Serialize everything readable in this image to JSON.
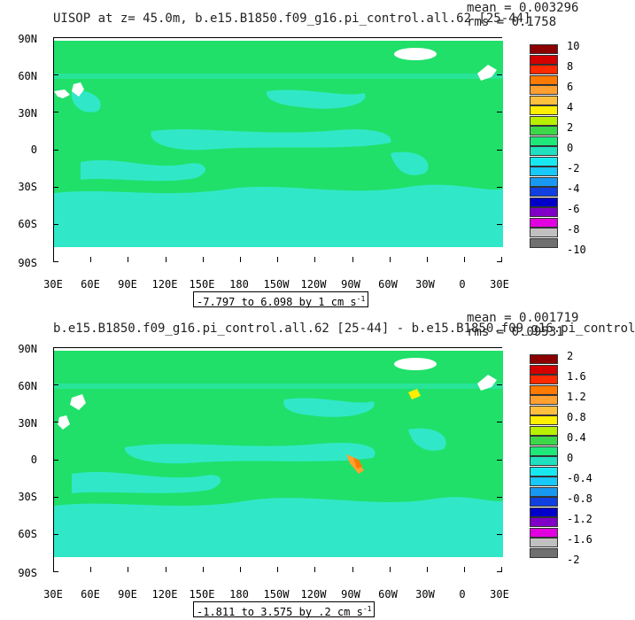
{
  "panels": [
    {
      "title": "UISOP at z=  45.0m, b.e15.B1850.f09_g16.pi_control.all.62 [25-44]",
      "mean_text": "mean = 0.003296",
      "rms_text": "rms = 0.1758",
      "range_text": "-7.797 to 6.098 by 1 cm s",
      "range_superscript": "-1",
      "colorbar_labels": [
        "10",
        "8",
        "6",
        "4",
        "2",
        "0",
        "-2",
        "-4",
        "-6",
        "-8",
        "-10"
      ]
    },
    {
      "title": "b.e15.B1850.f09_g16.pi_control.all.62 [25-44] - b.e15.B1850.f09_g16.pi_control",
      "mean_text": "mean = 0.001719",
      "rms_text": "rms = 0.09531",
      "range_text": "-1.811 to 3.575 by .2 cm s",
      "range_superscript": "-1",
      "colorbar_labels": [
        "2",
        "1.6",
        "1.2",
        "0.8",
        "0.4",
        "0",
        "-0.4",
        "-0.8",
        "-1.2",
        "-1.6",
        "-2"
      ]
    }
  ],
  "axes": {
    "lat_labels": [
      "90N",
      "60N",
      "30N",
      "0",
      "30S",
      "60S",
      "90S"
    ],
    "lon_labels": [
      "30E",
      "60E",
      "90E",
      "120E",
      "150E",
      "180",
      "150W",
      "120W",
      "90W",
      "60W",
      "30W",
      "0",
      "30E"
    ]
  },
  "colors": {
    "scale": [
      "#8b0000",
      "#d40000",
      "#ff2a00",
      "#ff7a00",
      "#ffa030",
      "#ffc040",
      "#ffee00",
      "#b8f000",
      "#3cd84a",
      "#1fe87a",
      "#20e0c0",
      "#18e8f0",
      "#18c8f8",
      "#1898f0",
      "#1040e0",
      "#0000c8",
      "#8000c8",
      "#e000e0",
      "#c0c0c0",
      "#707070"
    ],
    "background": "#20e06a",
    "ocean_light": "#30e8c8",
    "land": "#ffffff"
  },
  "chart_data": [
    {
      "type": "heatmap",
      "title": "UISOP at z=  45.0m, b.e15.B1850.f09_g16.pi_control.all.62 [25-44]",
      "stats": {
        "mean": 0.003296,
        "rms": 0.1758
      },
      "contour_range": {
        "min": -7.797,
        "max": 6.098,
        "interval": 1,
        "units": "cm s-1"
      },
      "colorbar_levels": [
        -10,
        -8,
        -6,
        -4,
        -2,
        0,
        2,
        4,
        6,
        8,
        10
      ],
      "x_range": [
        "30E",
        "30E"
      ],
      "y_range": [
        "90S",
        "90N"
      ]
    },
    {
      "type": "heatmap",
      "title": "b.e15.B1850.f09_g16.pi_control.all.62 [25-44] - b.e15.B1850.f09_g16.pi_control",
      "stats": {
        "mean": 0.001719,
        "rms": 0.09531
      },
      "contour_range": {
        "min": -1.811,
        "max": 3.575,
        "interval": 0.2,
        "units": "cm s-1"
      },
      "colorbar_levels": [
        -2,
        -1.6,
        -1.2,
        -0.8,
        -0.4,
        0,
        0.4,
        0.8,
        1.2,
        1.6,
        2
      ],
      "x_range": [
        "30E",
        "30E"
      ],
      "y_range": [
        "90S",
        "90N"
      ]
    }
  ]
}
